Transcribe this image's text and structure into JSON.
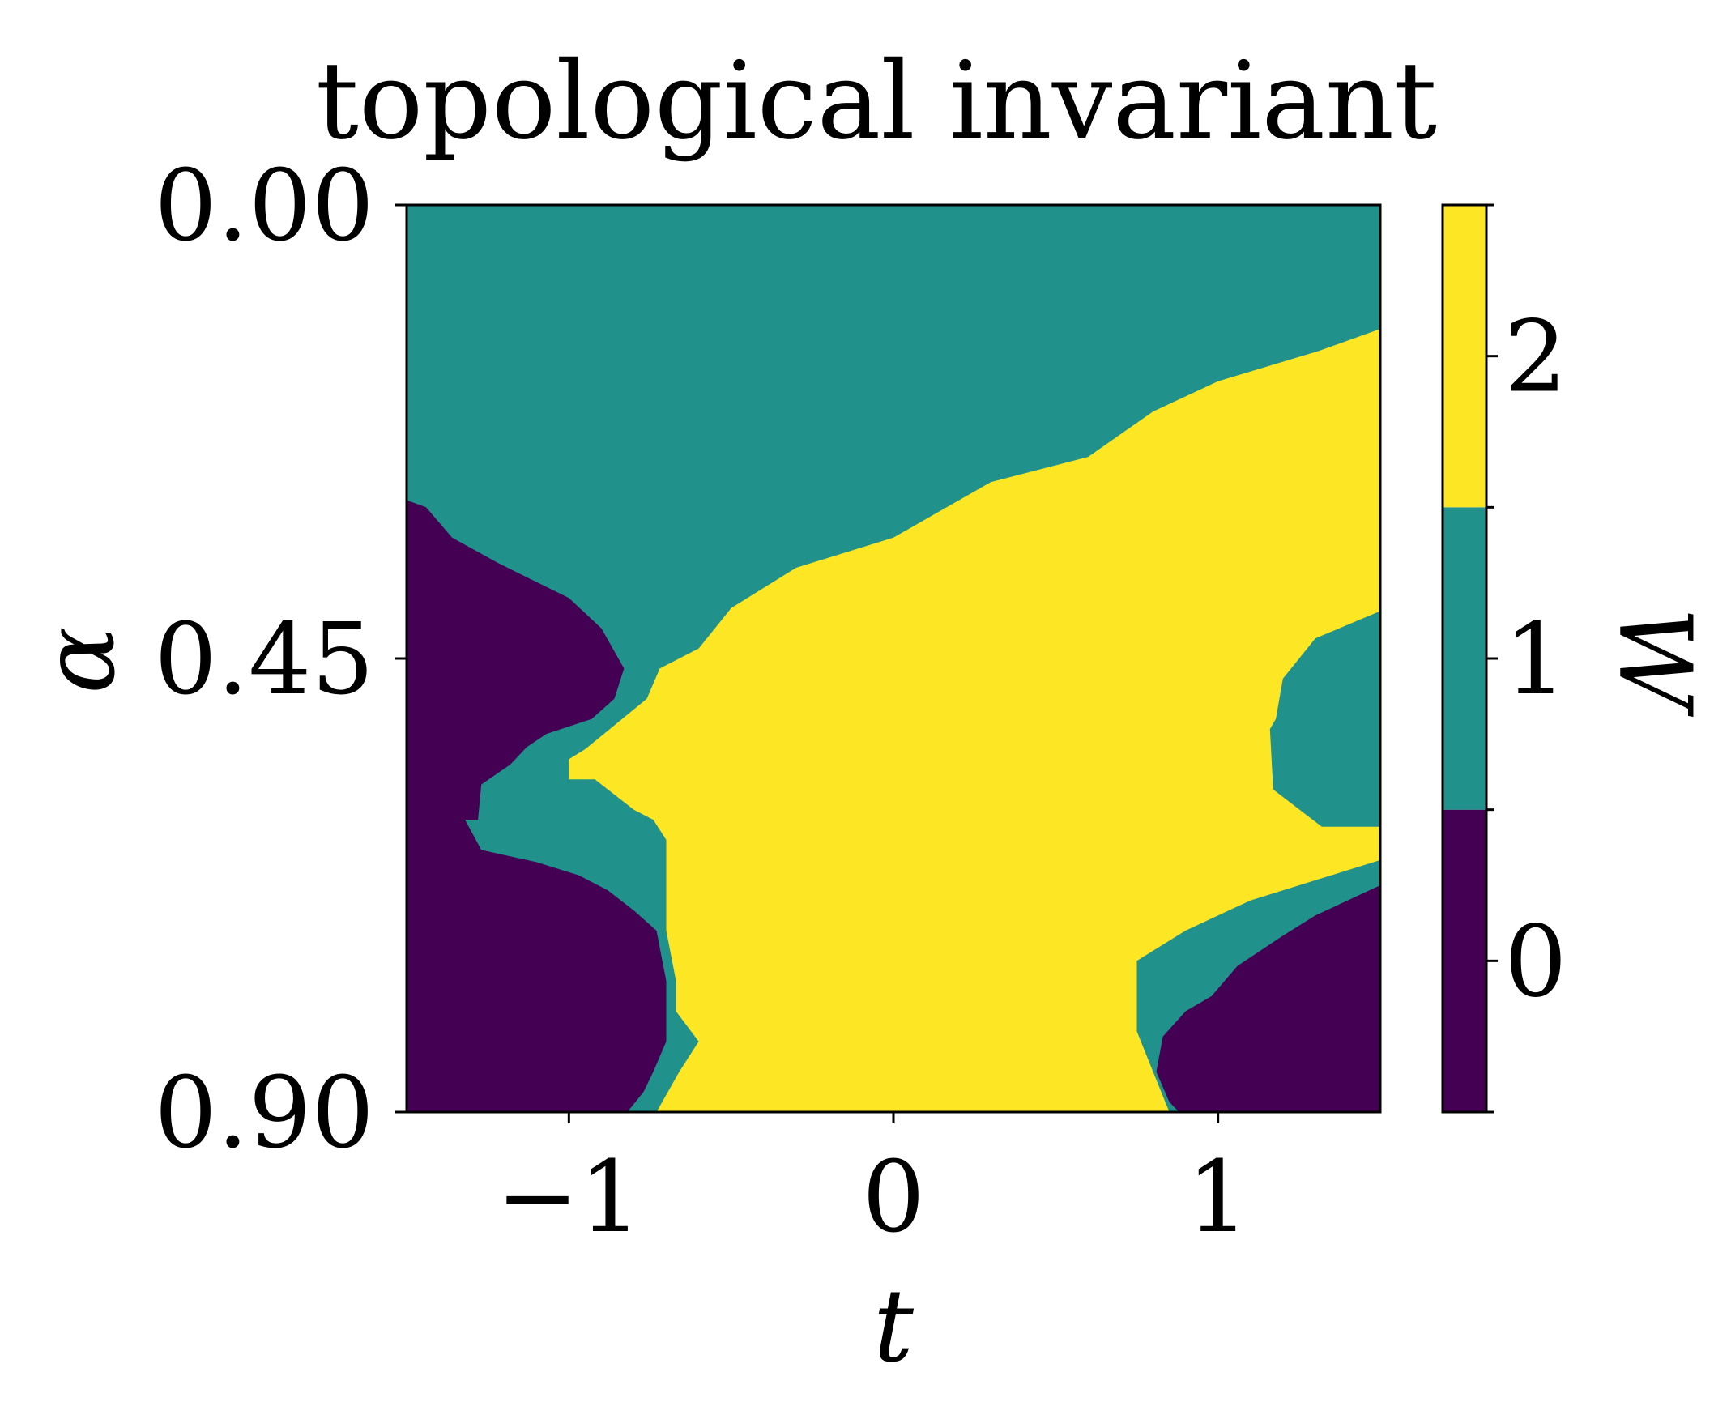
{
  "chart_data": {
    "type": "heatmap",
    "title": "topological invariant",
    "xlabel": "t",
    "ylabel": "α",
    "colorbar_label": "W",
    "xlim": [
      -1.5,
      1.5
    ],
    "ylim": [
      0.0,
      0.9
    ],
    "y_inverted": true,
    "xticks": [
      -1,
      0,
      1
    ],
    "xtick_labels": [
      "−1",
      "0",
      "1"
    ],
    "yticks": [
      0.0,
      0.45,
      0.9
    ],
    "ytick_labels": [
      "0.00",
      "0.45",
      "0.90"
    ],
    "colorbar_ticks": [
      0,
      1,
      2
    ],
    "colorbar_tick_labels": [
      "0",
      "1",
      "2"
    ],
    "colorbar_range": [
      -0.5,
      2.5
    ],
    "levels": [
      {
        "value": 0,
        "color": "#440154"
      },
      {
        "value": 1,
        "color": "#21918c"
      },
      {
        "value": 2,
        "color": "#fde725"
      }
    ],
    "regions": [
      {
        "value": 0,
        "label": "left-lower",
        "polygon": [
          [
            -1.5,
            0.293
          ],
          [
            -1.44,
            0.3
          ],
          [
            -1.36,
            0.33
          ],
          [
            -1.22,
            0.355
          ],
          [
            -1.0,
            0.39
          ],
          [
            -0.9,
            0.42
          ],
          [
            -0.83,
            0.46
          ],
          [
            -0.86,
            0.49
          ],
          [
            -0.93,
            0.51
          ],
          [
            -1.07,
            0.525
          ],
          [
            -1.13,
            0.538
          ],
          [
            -1.18,
            0.555
          ],
          [
            -1.27,
            0.575
          ],
          [
            -1.28,
            0.61
          ],
          [
            -1.32,
            0.61
          ],
          [
            -1.27,
            0.64
          ],
          [
            -1.1,
            0.652
          ],
          [
            -0.97,
            0.665
          ],
          [
            -0.88,
            0.68
          ],
          [
            -0.8,
            0.7
          ],
          [
            -0.73,
            0.72
          ],
          [
            -0.7,
            0.77
          ],
          [
            -0.7,
            0.83
          ],
          [
            -0.74,
            0.86
          ],
          [
            -0.77,
            0.88
          ],
          [
            -0.82,
            0.9
          ],
          [
            -1.5,
            0.9
          ]
        ]
      },
      {
        "value": 0,
        "label": "right-lower",
        "polygon": [
          [
            1.5,
            0.675
          ],
          [
            1.3,
            0.705
          ],
          [
            1.2,
            0.725
          ],
          [
            1.06,
            0.755
          ],
          [
            0.98,
            0.785
          ],
          [
            0.9,
            0.8
          ],
          [
            0.83,
            0.825
          ],
          [
            0.81,
            0.86
          ],
          [
            0.85,
            0.89
          ],
          [
            0.88,
            0.9
          ],
          [
            1.5,
            0.9
          ]
        ]
      },
      {
        "value": 2,
        "label": "central-upper",
        "polygon": [
          [
            1.5,
            0.123
          ],
          [
            1.31,
            0.145
          ],
          [
            1.0,
            0.175
          ],
          [
            0.8,
            0.205
          ],
          [
            0.6,
            0.25
          ],
          [
            0.3,
            0.275
          ],
          [
            0.0,
            0.33
          ],
          [
            -0.3,
            0.36
          ],
          [
            -0.5,
            0.4
          ],
          [
            -0.6,
            0.44
          ],
          [
            -0.72,
            0.46
          ],
          [
            -0.76,
            0.49
          ],
          [
            -0.95,
            0.54
          ],
          [
            -1.0,
            0.55
          ],
          [
            -1.0,
            0.57
          ],
          [
            -0.92,
            0.57
          ],
          [
            -0.8,
            0.6
          ],
          [
            -0.74,
            0.61
          ],
          [
            -0.7,
            0.63
          ],
          [
            -0.7,
            0.72
          ],
          [
            -0.67,
            0.77
          ],
          [
            -0.67,
            0.8
          ],
          [
            -0.6,
            0.83
          ],
          [
            -0.66,
            0.86
          ],
          [
            -0.73,
            0.9
          ],
          [
            0.85,
            0.9
          ],
          [
            0.8,
            0.86
          ],
          [
            0.75,
            0.82
          ],
          [
            0.75,
            0.75
          ],
          [
            0.9,
            0.72
          ],
          [
            1.1,
            0.69
          ],
          [
            1.3,
            0.67
          ],
          [
            1.5,
            0.65
          ],
          [
            1.5,
            0.6
          ],
          [
            1.35,
            0.617
          ],
          [
            1.25,
            0.575
          ],
          [
            1.17,
            0.525
          ],
          [
            1.2,
            0.47
          ],
          [
            1.3,
            0.43
          ],
          [
            1.5,
            0.403
          ]
        ]
      },
      {
        "value": 1,
        "label": "right-middle-pocket",
        "polygon": [
          [
            1.5,
            0.403
          ],
          [
            1.35,
            0.43
          ],
          [
            1.25,
            0.47
          ],
          [
            1.16,
            0.52
          ],
          [
            1.17,
            0.58
          ],
          [
            1.32,
            0.617
          ],
          [
            1.5,
            0.617
          ]
        ]
      }
    ]
  }
}
